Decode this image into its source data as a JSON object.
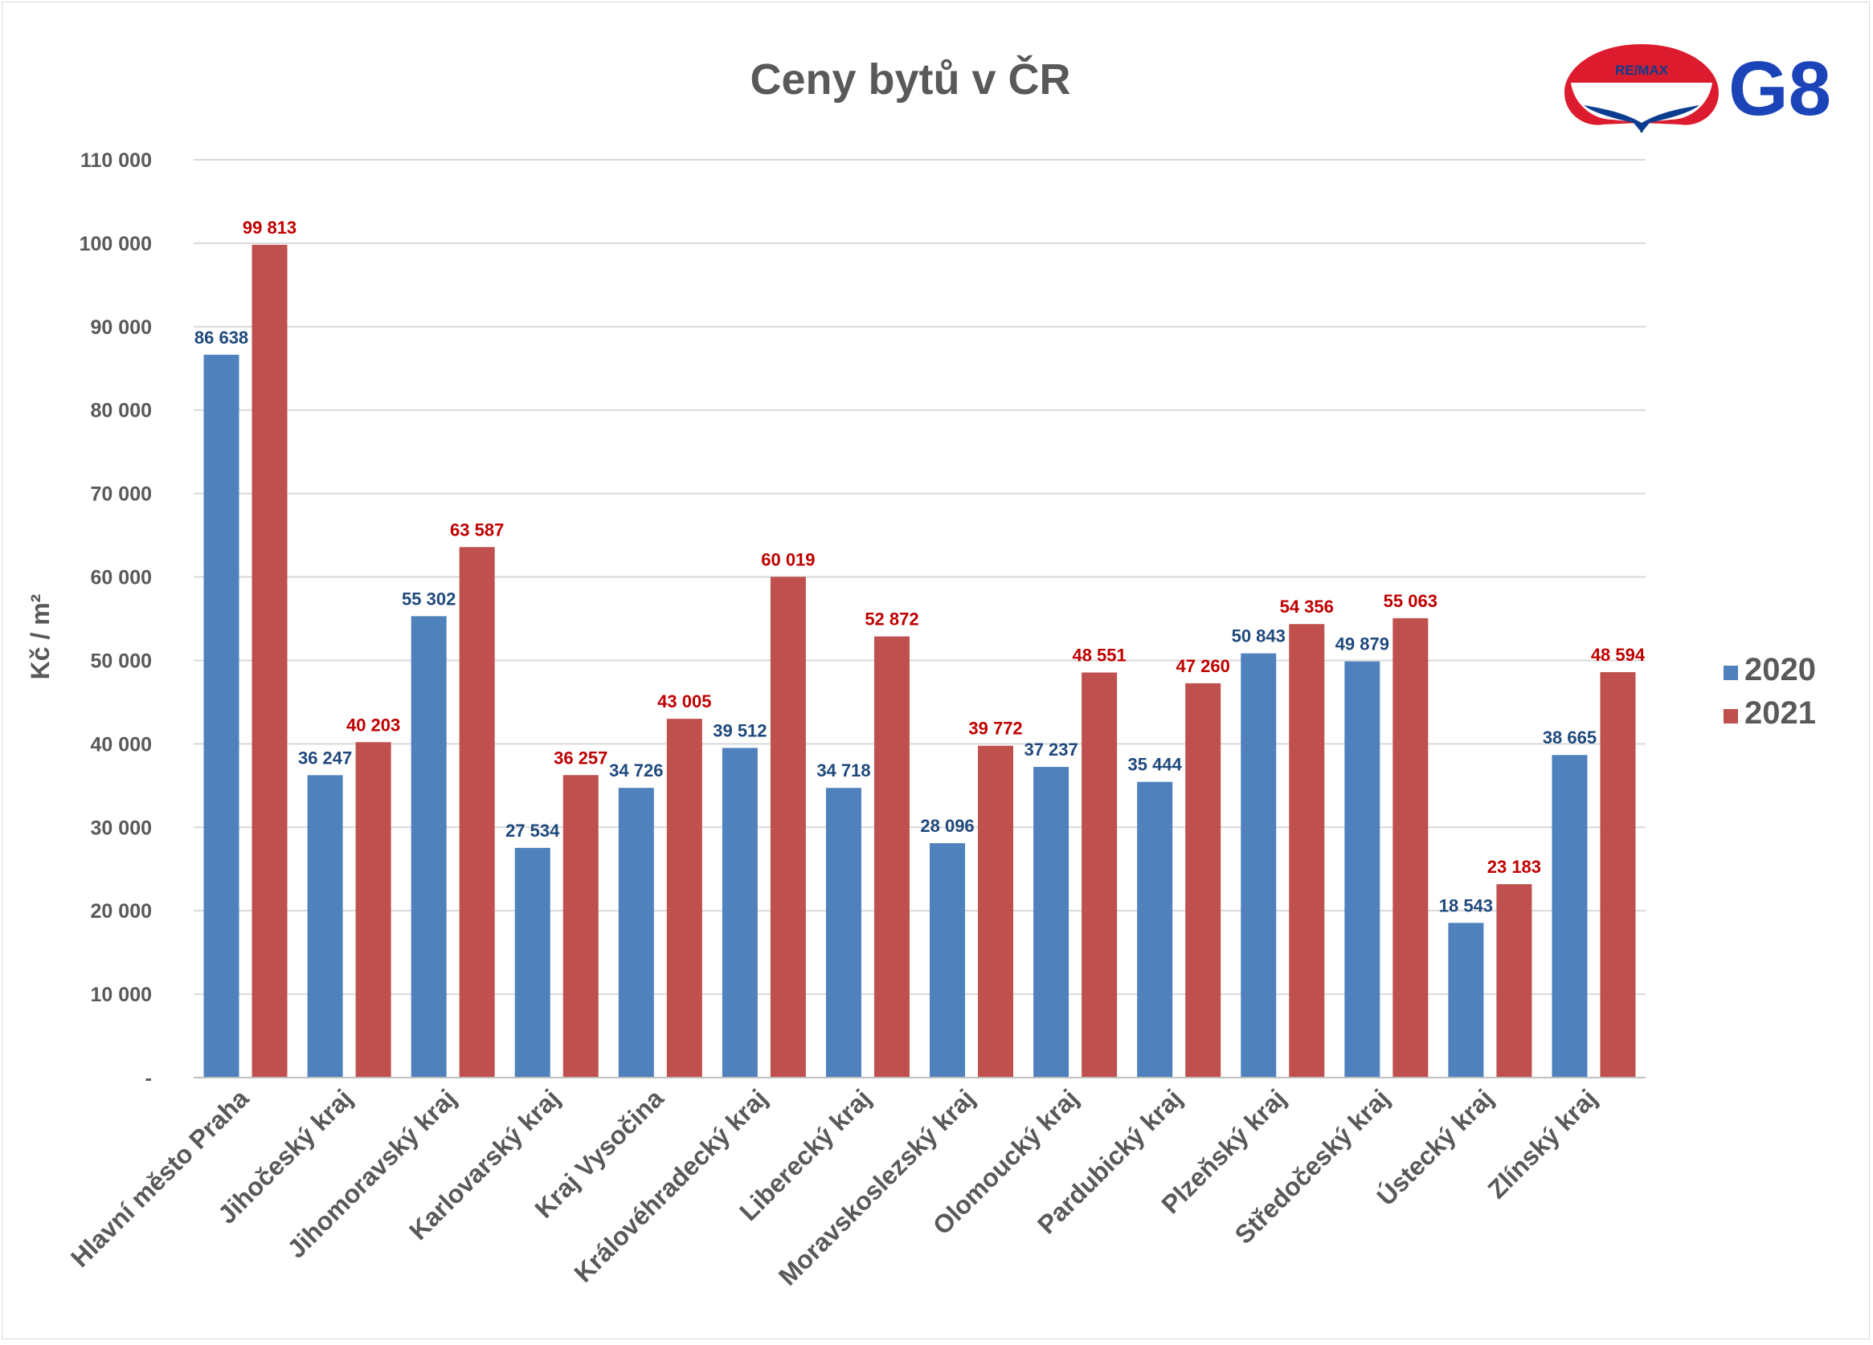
{
  "chart_data": {
    "type": "bar",
    "title": "Ceny bytů v ČR",
    "xlabel": "",
    "ylabel": "Kč / m²",
    "ylim": [
      0,
      110000
    ],
    "yticks": [
      {
        "value": 0,
        "label": "-"
      },
      {
        "value": 10000,
        "label": "10 000"
      },
      {
        "value": 20000,
        "label": "20 000"
      },
      {
        "value": 30000,
        "label": "30 000"
      },
      {
        "value": 40000,
        "label": "40 000"
      },
      {
        "value": 50000,
        "label": "50 000"
      },
      {
        "value": 60000,
        "label": "60 000"
      },
      {
        "value": 70000,
        "label": "70 000"
      },
      {
        "value": 80000,
        "label": "80 000"
      },
      {
        "value": 90000,
        "label": "90 000"
      },
      {
        "value": 100000,
        "label": "100 000"
      },
      {
        "value": 110000,
        "label": "110 000"
      }
    ],
    "grid": true,
    "legend_position": "right",
    "categories": [
      "Hlavní město Praha",
      "Jihočeský kraj",
      "Jihomoravský kraj",
      "Karlovarský kraj",
      "Kraj Vysočina",
      "Královéhradecký kraj",
      "Liberecký kraj",
      "Moravskoslezský kraj",
      "Olomoucký kraj",
      "Pardubický kraj",
      "Plzeňský kraj",
      "Středočeský kraj",
      "Ústecký kraj",
      "Zlínský kraj"
    ],
    "series": [
      {
        "name": "2020",
        "color": "#4f81bd",
        "label_color": "#1f497d",
        "values": [
          86638,
          36247,
          55302,
          27534,
          34726,
          39512,
          34718,
          28096,
          37237,
          35444,
          50843,
          49879,
          18543,
          38665
        ],
        "labels": [
          "86 638",
          "36 247",
          "55 302",
          "27 534",
          "34 726",
          "39 512",
          "34 718",
          "28 096",
          "37 237",
          "35 444",
          "50 843",
          "49 879",
          "18 543",
          "38 665"
        ]
      },
      {
        "name": "2021",
        "color": "#c0504d",
        "label_color": "#c00000",
        "values": [
          99813,
          40203,
          63587,
          36257,
          43005,
          60019,
          52872,
          39772,
          48551,
          47260,
          54356,
          55063,
          23183,
          48594
        ],
        "labels": [
          "99 813",
          "40 203",
          "63 587",
          "36 257",
          "43 005",
          "60 019",
          "52 872",
          "39 772",
          "48 551",
          "47 260",
          "54 356",
          "55 063",
          "23 183",
          "48 594"
        ]
      }
    ]
  },
  "logo": {
    "brand_text": "RE/MAX",
    "office_text": "G8"
  }
}
